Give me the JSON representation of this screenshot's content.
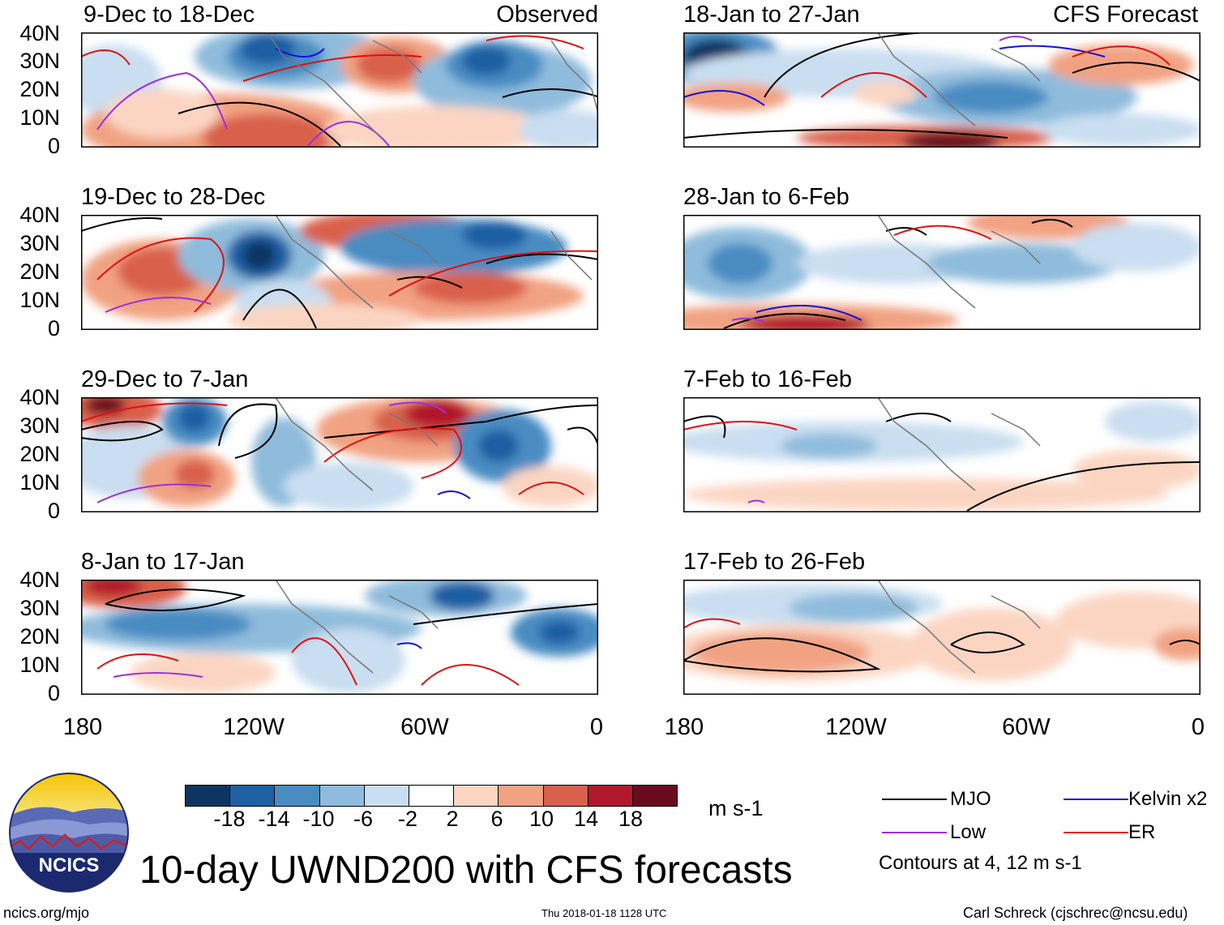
{
  "header": {
    "observed_label": "Observed",
    "forecast_label": "CFS Forecast"
  },
  "panels_left": [
    {
      "title": "9-Dec to 18-Dec"
    },
    {
      "title": "19-Dec to 28-Dec"
    },
    {
      "title": "29-Dec to 7-Jan"
    },
    {
      "title": "8-Jan to 17-Jan"
    }
  ],
  "panels_right": [
    {
      "title": "18-Jan to 27-Jan"
    },
    {
      "title": "28-Jan to 6-Feb"
    },
    {
      "title": "7-Feb to 16-Feb"
    },
    {
      "title": "17-Feb to 26-Feb"
    }
  ],
  "y_axis": [
    "40N",
    "30N",
    "20N",
    "10N",
    "0"
  ],
  "x_axis": [
    "180",
    "120W",
    "60W",
    "0"
  ],
  "colorbar": {
    "units": "m s-1",
    "labels": [
      "-18",
      "-14",
      "-10",
      "-6",
      "-2",
      "2",
      "6",
      "10",
      "14",
      "18"
    ],
    "colors": [
      "#0d3561",
      "#1f5fa3",
      "#4a8cc2",
      "#8fbcdc",
      "#c9def0",
      "#ffffff",
      "#fbd5c2",
      "#f1a282",
      "#d9604c",
      "#b2182b",
      "#6a0a1f"
    ]
  },
  "legend": {
    "items": [
      {
        "label": "MJO",
        "color": "#000000"
      },
      {
        "label": "Kelvin x2",
        "color": "#1010e0"
      },
      {
        "label": "Low",
        "color": "#9b30e0"
      },
      {
        "label": "ER",
        "color": "#e01010"
      }
    ],
    "note": "Contours at 4, 12 m s-1"
  },
  "footer": {
    "title": "10-day UWND200 with CFS forecasts",
    "site": "ncics.org/mjo",
    "timestamp": "Thu 2018-01-18 1128 UTC",
    "author": "Carl Schreck (cjschrec@ncsu.edu)",
    "logo_text": "NCICS"
  }
}
